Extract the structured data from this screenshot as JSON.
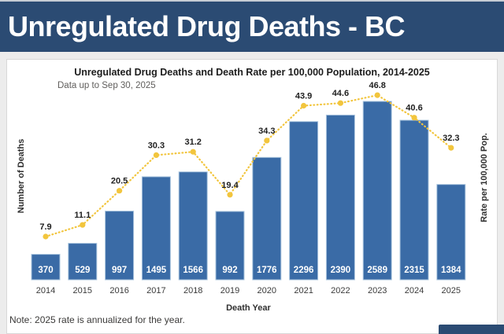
{
  "header": {
    "title": "Unregulated Drug Deaths - BC"
  },
  "chart": {
    "title": "Unregulated Drug Deaths and Death Rate per 100,000 Population, 2014-2025",
    "subtitle": "Data up to Sep 30, 2025"
  },
  "chart_data": {
    "type": "bar",
    "title": "Unregulated Drug Deaths and Death Rate per 100,000 Population, 2014-2025",
    "subtitle": "Data up to Sep 30, 2025",
    "categories": [
      "2014",
      "2015",
      "2016",
      "2017",
      "2018",
      "2019",
      "2020",
      "2021",
      "2022",
      "2023",
      "2024",
      "2025"
    ],
    "series": [
      {
        "name": "Number of Deaths",
        "type": "bar",
        "values": [
          370,
          529,
          997,
          1495,
          1566,
          992,
          1776,
          2296,
          2390,
          2589,
          2315,
          1384
        ]
      },
      {
        "name": "Rate per 100,000 Pop.",
        "type": "line",
        "values": [
          7.9,
          11.1,
          20.5,
          30.3,
          31.2,
          19.4,
          34.3,
          43.9,
          44.6,
          46.8,
          40.6,
          32.3
        ]
      }
    ],
    "xlabel": "Death Year",
    "ylabel_left": "Number of Deaths",
    "ylabel_right": "Rate per 100,000 Pop.",
    "legend": "none",
    "grid": false,
    "colors": {
      "bar": "#3a6ba6",
      "bar_stroke": "#a9c4de",
      "line": "#f2c53d",
      "bar_value_text": "#ffffff",
      "rate_label_text": "#1f1f1f",
      "axis_text": "#3a3a3a",
      "header_navy": "#2b4b73"
    }
  },
  "note": "Note: 2025 rate is annualized for the year."
}
